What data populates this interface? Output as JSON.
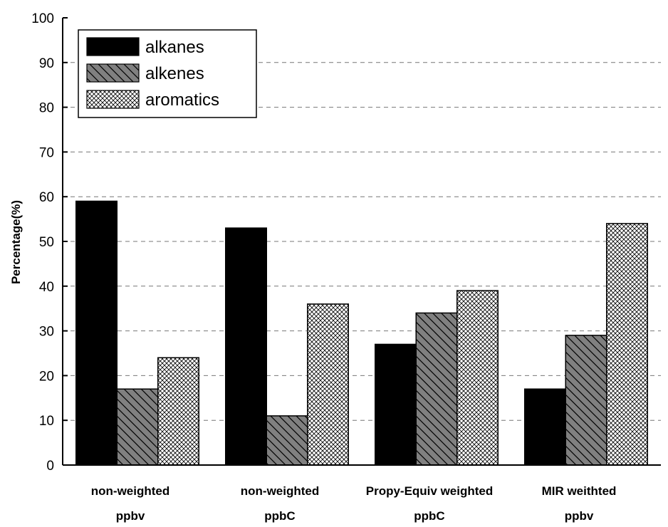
{
  "chart_data": {
    "type": "bar",
    "ylabel": "Percentage(%)",
    "ylim": [
      0,
      100
    ],
    "yticks": [
      0,
      10,
      20,
      30,
      40,
      50,
      60,
      70,
      80,
      90,
      100
    ],
    "grid": "horizontal dashed",
    "legend_position": "top-left",
    "categories": [
      [
        "non-weighted",
        "ppbv"
      ],
      [
        "non-weighted",
        "ppbC"
      ],
      [
        "Propy-Equiv weighted",
        "ppbC"
      ],
      [
        "MIR weithted",
        "ppbv"
      ]
    ],
    "series": [
      {
        "name": "alkanes",
        "values": [
          59,
          53,
          27,
          17
        ],
        "color": "#000000",
        "pattern": "solid"
      },
      {
        "name": "alkenes",
        "values": [
          17,
          11,
          34,
          29
        ],
        "color": "#808080",
        "pattern": "diagonal-hatch"
      },
      {
        "name": "aromatics",
        "values": [
          24,
          36,
          39,
          54
        ],
        "color": "#ffffff",
        "pattern": "crosshatch"
      }
    ]
  }
}
